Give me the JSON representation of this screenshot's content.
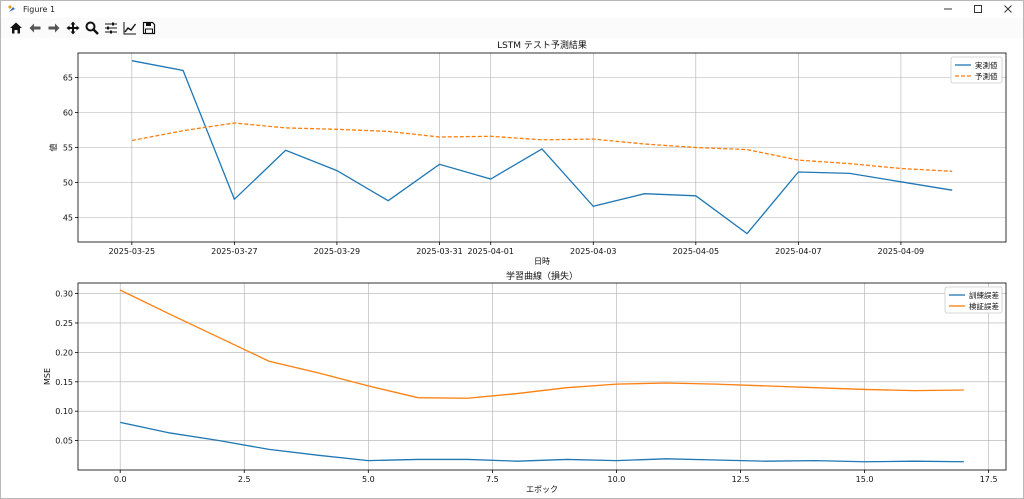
{
  "window": {
    "title": "Figure 1",
    "controls": [
      "minimize-icon",
      "maximize-icon",
      "close-icon"
    ]
  },
  "toolbar": {
    "items": [
      {
        "name": "home-button",
        "icon": "home-icon"
      },
      {
        "name": "back-button",
        "icon": "arrow-left-icon"
      },
      {
        "name": "forward-button",
        "icon": "arrow-right-icon"
      },
      {
        "name": "pan-button",
        "icon": "move-icon"
      },
      {
        "name": "zoom-button",
        "icon": "magnifier-icon"
      },
      {
        "name": "configure-subplots-button",
        "icon": "sliders-icon"
      },
      {
        "name": "edit-axis-button",
        "icon": "line-chart-icon"
      },
      {
        "name": "save-button",
        "icon": "floppy-icon"
      }
    ]
  },
  "colors": {
    "blue": "#1f77b4",
    "orange": "#ff7f0e",
    "grid": "#b0b0b0"
  },
  "chart_data": [
    {
      "type": "line",
      "title": "LSTM テスト予測結果",
      "xlabel": "日時",
      "ylabel": "値",
      "x_dates": [
        "2025-03-25",
        "2025-03-26",
        "2025-03-27",
        "2025-03-28",
        "2025-03-29",
        "2025-03-30",
        "2025-03-31",
        "2025-04-01",
        "2025-04-02",
        "2025-04-03",
        "2025-04-04",
        "2025-04-05",
        "2025-04-06",
        "2025-04-07",
        "2025-04-08",
        "2025-04-09",
        "2025-04-10"
      ],
      "xticks": [
        "2025-03-25",
        "2025-03-27",
        "2025-03-29",
        "2025-03-31",
        "2025-04-01",
        "2025-04-03",
        "2025-04-05",
        "2025-04-07",
        "2025-04-09"
      ],
      "yticks": [
        45,
        50,
        55,
        60,
        65
      ],
      "ylim": [
        41.5,
        68.5
      ],
      "grid": true,
      "legend": "top-right",
      "series": [
        {
          "name": "実測値",
          "style": "solid",
          "color": "#1f77b4",
          "values": [
            67.4,
            66.0,
            47.6,
            54.6,
            51.7,
            47.4,
            52.6,
            50.5,
            54.8,
            46.6,
            48.4,
            48.1,
            42.7,
            51.5,
            51.3,
            50.1,
            48.9
          ]
        },
        {
          "name": "予測値",
          "style": "dashed",
          "color": "#ff7f0e",
          "values": [
            56.0,
            57.4,
            58.5,
            57.8,
            57.6,
            57.3,
            56.5,
            56.6,
            56.1,
            56.2,
            55.5,
            55.0,
            54.7,
            53.2,
            52.7,
            52.0,
            51.6
          ]
        }
      ]
    },
    {
      "type": "line",
      "title": "学習曲線（損失）",
      "xlabel": "エポック",
      "ylabel": "MSE",
      "x": [
        0,
        1,
        2,
        3,
        4,
        5,
        6,
        7,
        8,
        9,
        10,
        11,
        12,
        13,
        14,
        15,
        16,
        17
      ],
      "xticks": [
        "0.0",
        "2.5",
        "5.0",
        "7.5",
        "10.0",
        "12.5",
        "15.0",
        "17.5"
      ],
      "yticks": [
        "0.05",
        "0.10",
        "0.15",
        "0.20",
        "0.25",
        "0.30"
      ],
      "xlim": [
        -0.85,
        17.85
      ],
      "ylim": [
        0.0,
        0.318
      ],
      "grid": true,
      "legend": "top-right",
      "series": [
        {
          "name": "訓練誤差",
          "style": "solid",
          "color": "#1f77b4",
          "values": [
            0.081,
            0.063,
            0.05,
            0.035,
            0.025,
            0.016,
            0.018,
            0.018,
            0.015,
            0.018,
            0.016,
            0.019,
            0.017,
            0.015,
            0.016,
            0.014,
            0.015,
            0.014
          ]
        },
        {
          "name": "検証誤差",
          "style": "solid",
          "color": "#ff7f0e",
          "values": [
            0.306,
            0.265,
            0.225,
            0.185,
            0.165,
            0.143,
            0.123,
            0.122,
            0.13,
            0.14,
            0.146,
            0.148,
            0.146,
            0.143,
            0.14,
            0.137,
            0.135,
            0.136
          ]
        }
      ]
    }
  ]
}
